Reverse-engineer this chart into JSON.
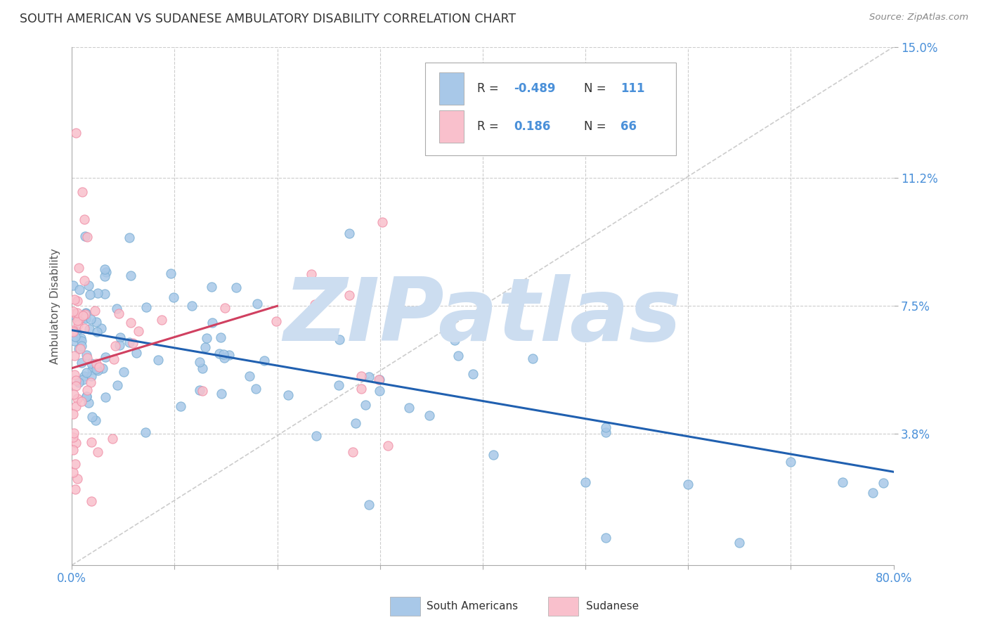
{
  "title": "SOUTH AMERICAN VS SUDANESE AMBULATORY DISABILITY CORRELATION CHART",
  "source": "Source: ZipAtlas.com",
  "ylabel": "Ambulatory Disability",
  "xlim": [
    0.0,
    0.8
  ],
  "ylim": [
    0.0,
    0.15
  ],
  "xtick_vals": [
    0.0,
    0.1,
    0.2,
    0.3,
    0.4,
    0.5,
    0.6,
    0.7,
    0.8
  ],
  "xticklabels": [
    "0.0%",
    "",
    "",
    "",
    "",
    "",
    "",
    "",
    "80.0%"
  ],
  "ytick_right_vals": [
    0.038,
    0.075,
    0.112,
    0.15
  ],
  "ytick_right_labels": [
    "3.8%",
    "7.5%",
    "11.2%",
    "15.0%"
  ],
  "blue_color": "#a8c8e8",
  "blue_edge_color": "#7bafd4",
  "pink_color": "#f9c0cc",
  "pink_edge_color": "#f090a8",
  "blue_line_color": "#2060b0",
  "pink_line_color": "#d04060",
  "grid_color": "#cccccc",
  "watermark_color": "#ccddf0",
  "watermark_text": "ZIPatlas",
  "legend_R_blue": "-0.489",
  "legend_N_blue": "111",
  "legend_R_pink": "0.186",
  "legend_N_pink": "66",
  "legend_blue_color": "#a8c8e8",
  "legend_pink_color": "#f9c0cc",
  "legend_text_color": "#333333",
  "legend_num_color": "#4a90d9",
  "bottom_legend_blue_color": "#a8c8e8",
  "bottom_legend_pink_color": "#f9c0cc",
  "bottom_legend_black": "#333333"
}
